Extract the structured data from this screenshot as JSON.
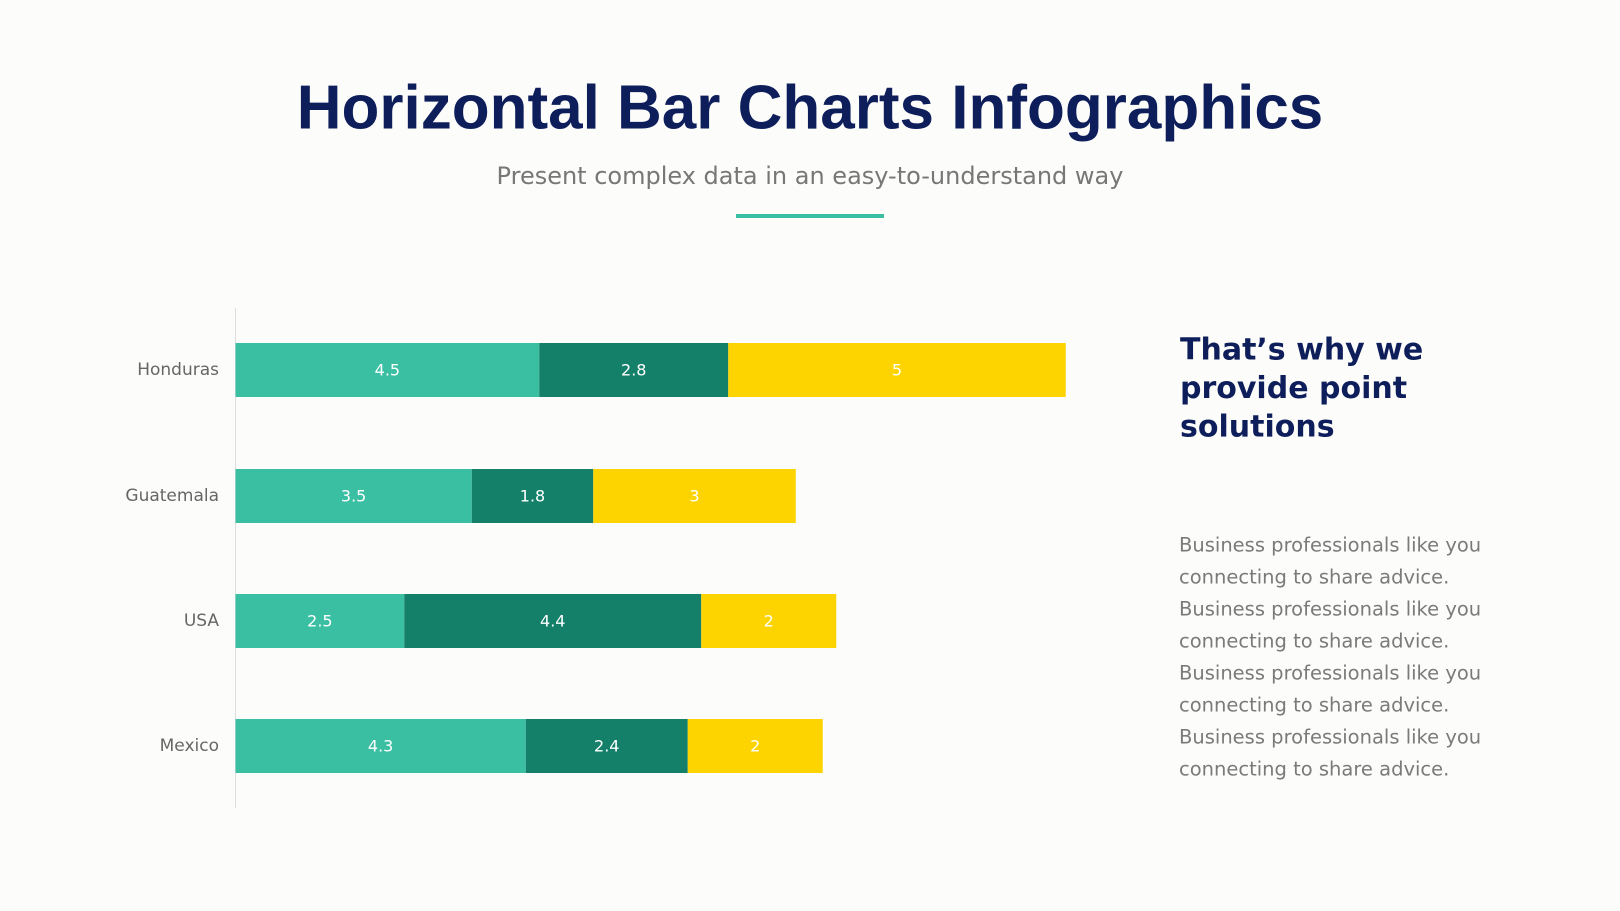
{
  "title": "Horizontal Bar Charts Infographics",
  "subtitle": "Present complex data in an easy-to-understand way",
  "chart_data": {
    "type": "stacked-bar-horizontal",
    "categories": [
      "Honduras",
      "Guatemala",
      "USA",
      "Mexico"
    ],
    "series": [
      {
        "color": "#3bbfa3",
        "values": [
          4.5,
          3.5,
          2.5,
          4.3
        ]
      },
      {
        "color": "#14806a",
        "values": [
          2.8,
          1.8,
          4.4,
          2.4
        ]
      },
      {
        "color": "#fdd400",
        "values": [
          5,
          3,
          2,
          2
        ]
      }
    ]
  },
  "side": {
    "heading": [
      "That’s why we",
      "provide point",
      "solutions"
    ],
    "body": [
      "Business professionals like you",
      "connecting to share advice.",
      "Business professionals like you",
      "connecting to share advice.",
      "Business professionals like you",
      "connecting to share advice.",
      "Business professionals like you",
      "connecting to share advice."
    ]
  }
}
